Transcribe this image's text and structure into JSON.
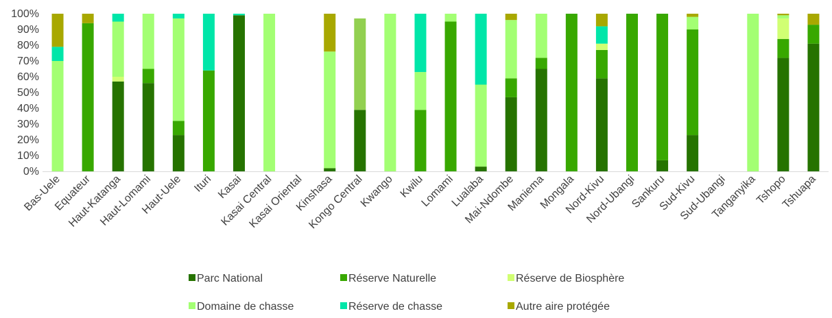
{
  "chart_data": {
    "type": "bar",
    "stacked": true,
    "normalized_percent": true,
    "title": "",
    "xlabel": "",
    "ylabel": "",
    "ylim": [
      0,
      100
    ],
    "y_ticks": [
      "0%",
      "10%",
      "20%",
      "30%",
      "40%",
      "50%",
      "60%",
      "70%",
      "80%",
      "90%",
      "100%"
    ],
    "grid": false,
    "legend_position": "bottom",
    "categories": [
      "Bas-Uele",
      "Equateur",
      "Haut-Katanga",
      "Haut-Lomami",
      "Haut-Uele",
      "Ituri",
      "Kasai",
      "Kasai Central",
      "Kasai Oriental",
      "Kinshasa",
      "Kongo Central",
      "Kwango",
      "Kwilu",
      "Lomami",
      "Lualaba",
      "Mai-Ndombe",
      "Maniema",
      "Mongala",
      "Nord-Kivu",
      "Nord-Ubangi",
      "Sankuru",
      "Sud-Kivu",
      "Sud-Ubangi",
      "Tanganyika",
      "Tshopo",
      "Tshuapa"
    ],
    "series": [
      {
        "name": "Parc National",
        "color": "#267300",
        "values": [
          0,
          0,
          57,
          56,
          23,
          0,
          99,
          0,
          0,
          2,
          39,
          0,
          0,
          0,
          3,
          47,
          65,
          0,
          59,
          0,
          7,
          23,
          0,
          0,
          72,
          81
        ]
      },
      {
        "name": "Réserve Naturelle",
        "color": "#38a800",
        "values": [
          0,
          94,
          0,
          9,
          9,
          64,
          0,
          0,
          0,
          0,
          0,
          0,
          39,
          95,
          0,
          12,
          7,
          100,
          18,
          100,
          93,
          67,
          0,
          0,
          12,
          12
        ]
      },
      {
        "name": "Réserve de Biosphère",
        "color": "#d1ff73",
        "values": [
          0,
          0,
          3,
          0,
          0,
          0,
          0,
          0,
          0,
          0,
          0,
          0,
          0,
          0,
          0,
          0,
          0,
          0,
          4,
          0,
          0,
          0,
          0,
          0,
          13,
          0
        ]
      },
      {
        "name": "Domaine de chasse",
        "color": "#a3ff73",
        "values": [
          70,
          0,
          35,
          35,
          65,
          0,
          0,
          100,
          0,
          74,
          58,
          100,
          24,
          5,
          52,
          37,
          28,
          0,
          0,
          0,
          0,
          8,
          0,
          100,
          2,
          0
        ]
      },
      {
        "name": "Réserve de chasse",
        "color": "#00e6a9",
        "values": [
          9,
          0,
          5,
          0,
          3,
          36,
          1,
          0,
          0,
          0,
          0,
          0,
          37,
          0,
          45,
          0,
          0,
          0,
          11,
          0,
          0,
          0,
          0,
          0,
          0,
          0
        ]
      },
      {
        "name": "Autre aire protégée",
        "color": "#a8a800",
        "values": [
          21,
          6,
          0,
          0,
          0,
          0,
          0,
          0,
          0,
          24,
          0,
          0,
          0,
          0,
          0,
          4,
          0,
          0,
          8,
          0,
          0,
          2,
          0,
          0,
          1,
          7
        ]
      }
    ],
    "bar_overrides": [
      {
        "category": "Kongo Central",
        "series": "Domaine de chasse",
        "color": "#92d050",
        "values_note_partial": [
          39,
          97
        ]
      }
    ]
  }
}
